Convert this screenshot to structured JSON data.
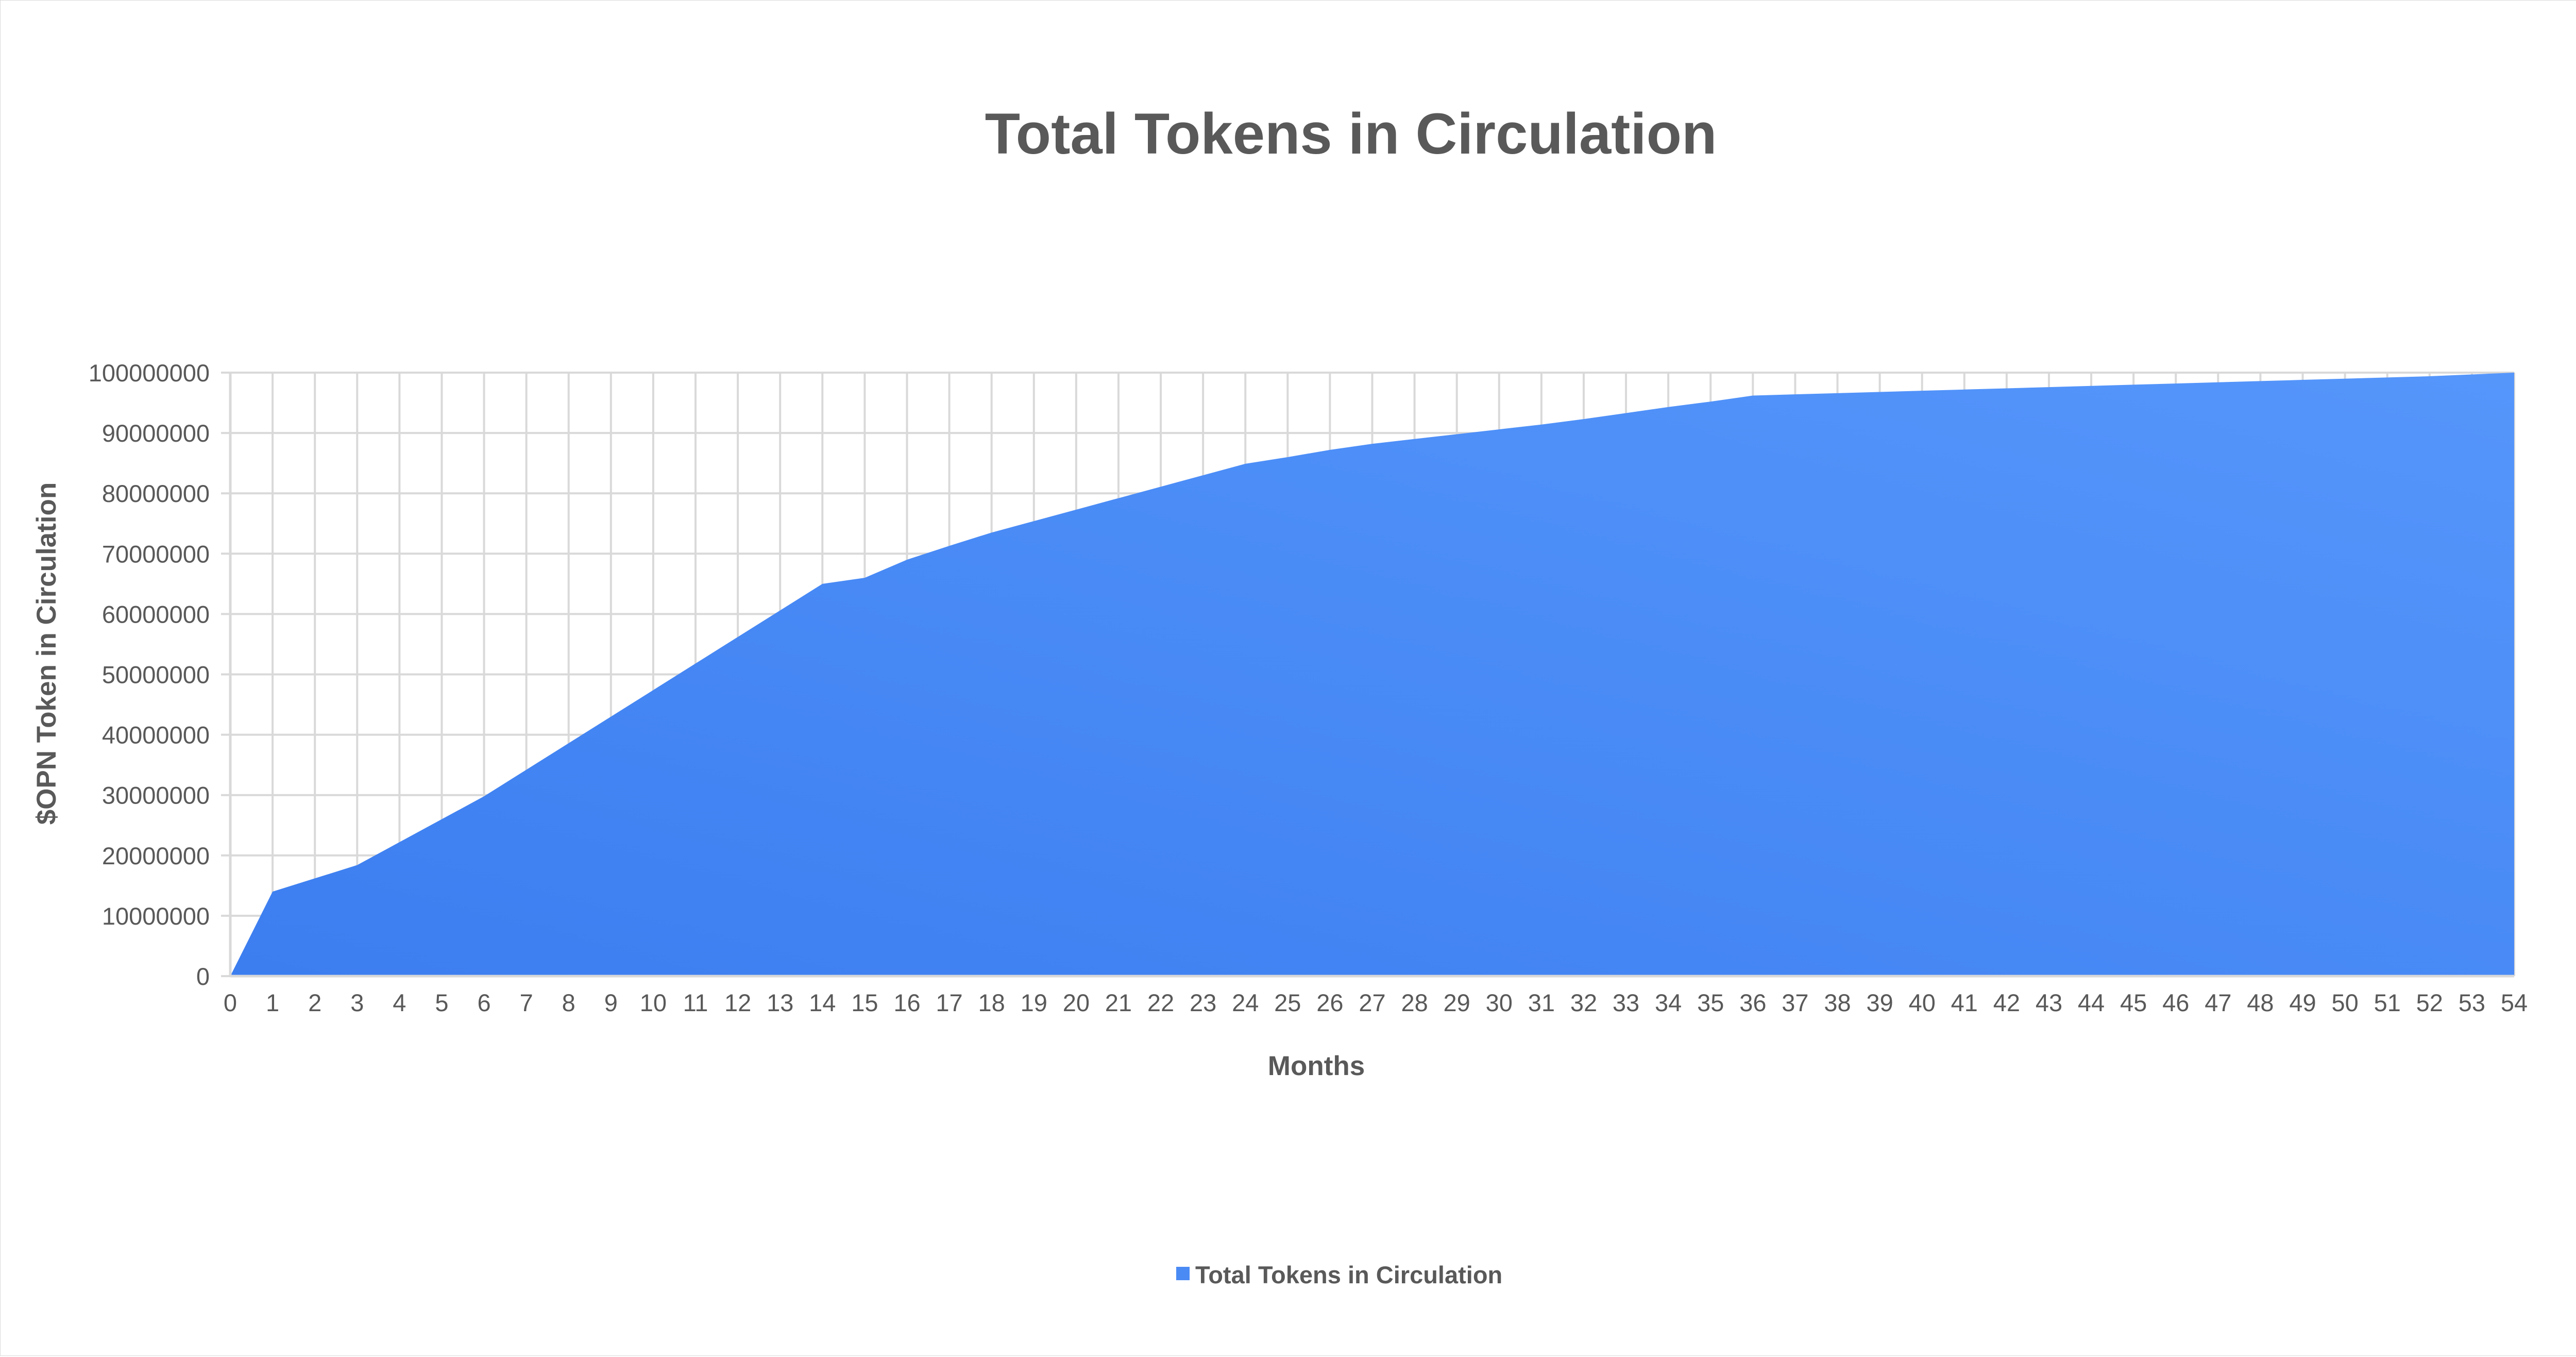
{
  "chart_data": {
    "type": "area",
    "title": "Total Tokens in Circulation",
    "xlabel": "Months",
    "ylabel": "$OPN Token in Circulation",
    "x": [
      0,
      1,
      2,
      3,
      4,
      5,
      6,
      7,
      8,
      9,
      10,
      11,
      12,
      13,
      14,
      15,
      16,
      17,
      18,
      19,
      20,
      21,
      22,
      23,
      24,
      25,
      26,
      27,
      28,
      29,
      30,
      31,
      32,
      33,
      34,
      35,
      36,
      37,
      38,
      39,
      40,
      41,
      42,
      43,
      44,
      45,
      46,
      47,
      48,
      49,
      50,
      51,
      52,
      53,
      54
    ],
    "x_tick_labels": [
      "0",
      "1",
      "2",
      "3",
      "4",
      "5",
      "6",
      "7",
      "8",
      "9",
      "10",
      "11",
      "12",
      "13",
      "14",
      "15",
      "16",
      "17",
      "18",
      "19",
      "20",
      "21",
      "22",
      "23",
      "24",
      "25",
      "26",
      "27",
      "28",
      "29",
      "30",
      "31",
      "32",
      "33",
      "34",
      "35",
      "36",
      "37",
      "38",
      "39",
      "40",
      "41",
      "42",
      "43",
      "44",
      "45",
      "46",
      "47",
      "48",
      "49",
      "50",
      "51",
      "52",
      "53",
      "54"
    ],
    "y_ticks": [
      0,
      10000000,
      20000000,
      30000000,
      40000000,
      50000000,
      60000000,
      70000000,
      80000000,
      90000000,
      100000000
    ],
    "y_tick_labels": [
      "0",
      "10000000",
      "20000000",
      "30000000",
      "40000000",
      "50000000",
      "60000000",
      "70000000",
      "80000000",
      "90000000",
      "100000000"
    ],
    "ylim": [
      0,
      100000000
    ],
    "xlim": [
      0,
      54
    ],
    "grid": true,
    "legend_position": "bottom",
    "series": [
      {
        "name": "Total Tokens in Circulation",
        "color": "#4a8af4",
        "values": [
          0,
          14000000,
          16200000,
          18400000,
          22200000,
          26000000,
          29800000,
          34200000,
          38600000,
          43000000,
          47400000,
          51800000,
          56200000,
          60600000,
          65000000,
          66000000,
          69000000,
          71300000,
          73500000,
          75400000,
          77300000,
          79200000,
          81100000,
          83000000,
          84900000,
          86000000,
          87200000,
          88200000,
          89000000,
          89800000,
          90600000,
          91400000,
          92300000,
          93300000,
          94300000,
          95200000,
          96200000,
          96400000,
          96600000,
          96800000,
          97000000,
          97200000,
          97400000,
          97600000,
          97800000,
          98000000,
          98200000,
          98400000,
          98600000,
          98800000,
          99000000,
          99200000,
          99400000,
          99700000,
          100000000
        ]
      }
    ]
  }
}
